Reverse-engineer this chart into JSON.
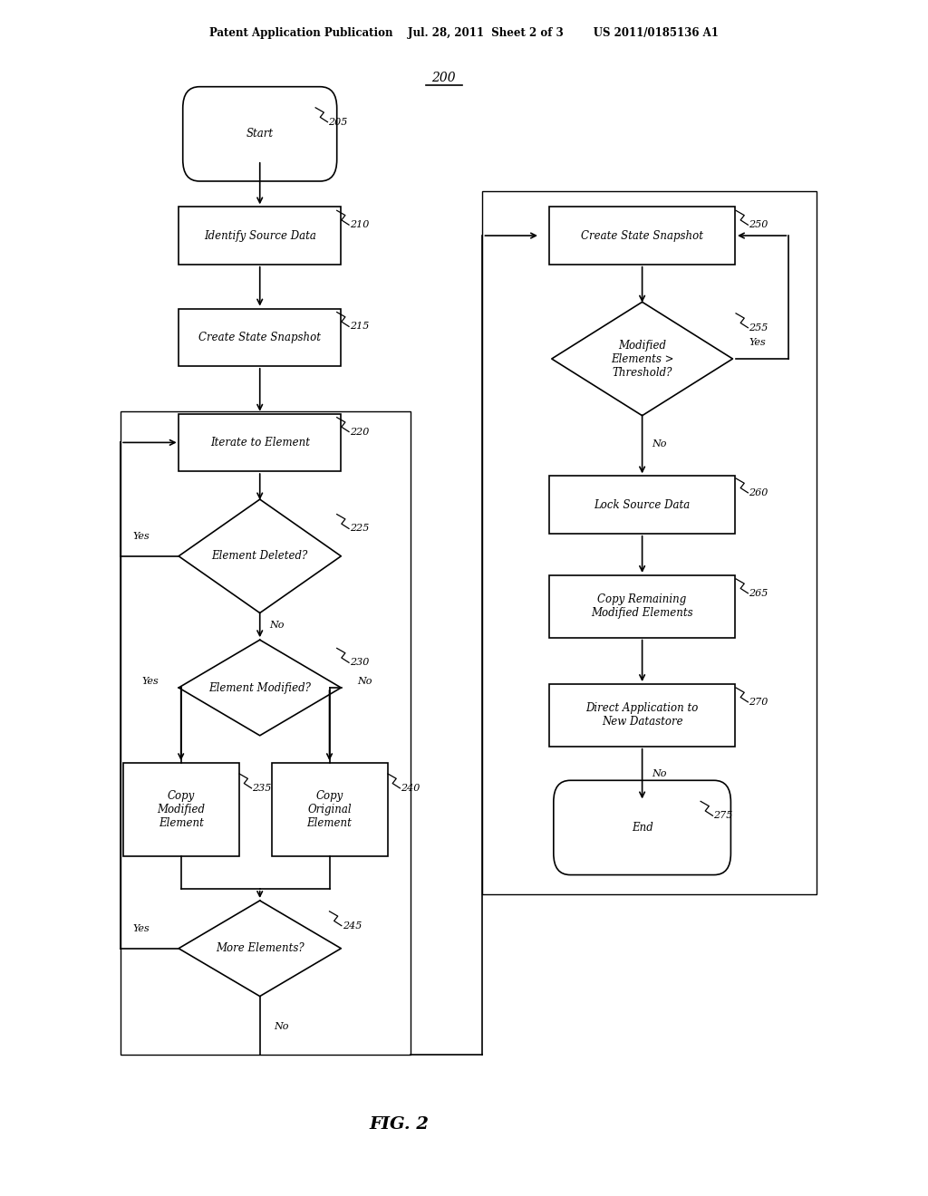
{
  "bg_color": "#ffffff",
  "header_text": "Patent Application Publication    Jul. 28, 2011  Sheet 2 of 3        US 2011/0185136 A1",
  "fig_label": "FIG. 2",
  "diagram_label": "200",
  "text_color": "#000000",
  "node_edge_color": "#000000",
  "node_bg": "#ffffff"
}
